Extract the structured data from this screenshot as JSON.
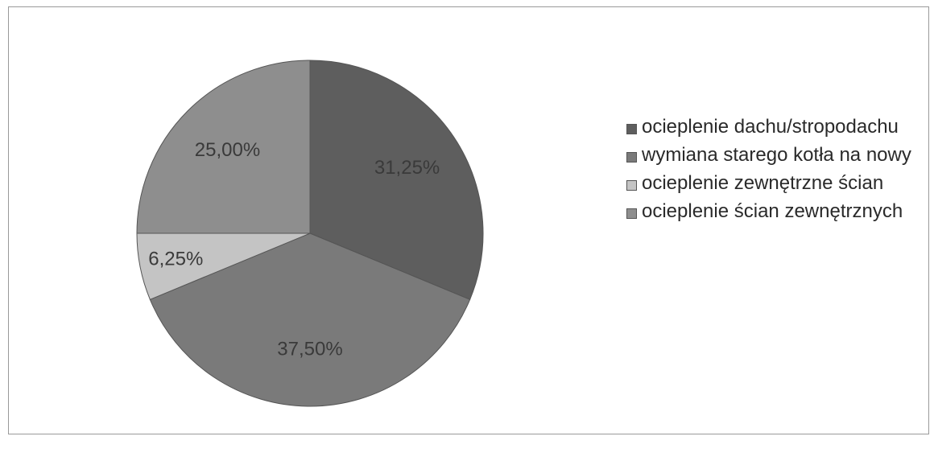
{
  "chart_data": {
    "type": "pie",
    "categories": [
      "ocieplenie dachu/stropodachu",
      "wymiana starego kotła na nowy",
      "ocieplenie zewnętrzne ścian",
      "ocieplenie ścian zewnętrznych"
    ],
    "values": [
      31.25,
      37.5,
      6.25,
      25
    ],
    "value_labels": [
      "31,25%",
      "37,50%",
      "6,25%",
      "25,00%"
    ],
    "colors": [
      "#5e5e5e",
      "#7a7a7a",
      "#c4c4c4",
      "#8e8e8e"
    ],
    "legend": "right"
  }
}
